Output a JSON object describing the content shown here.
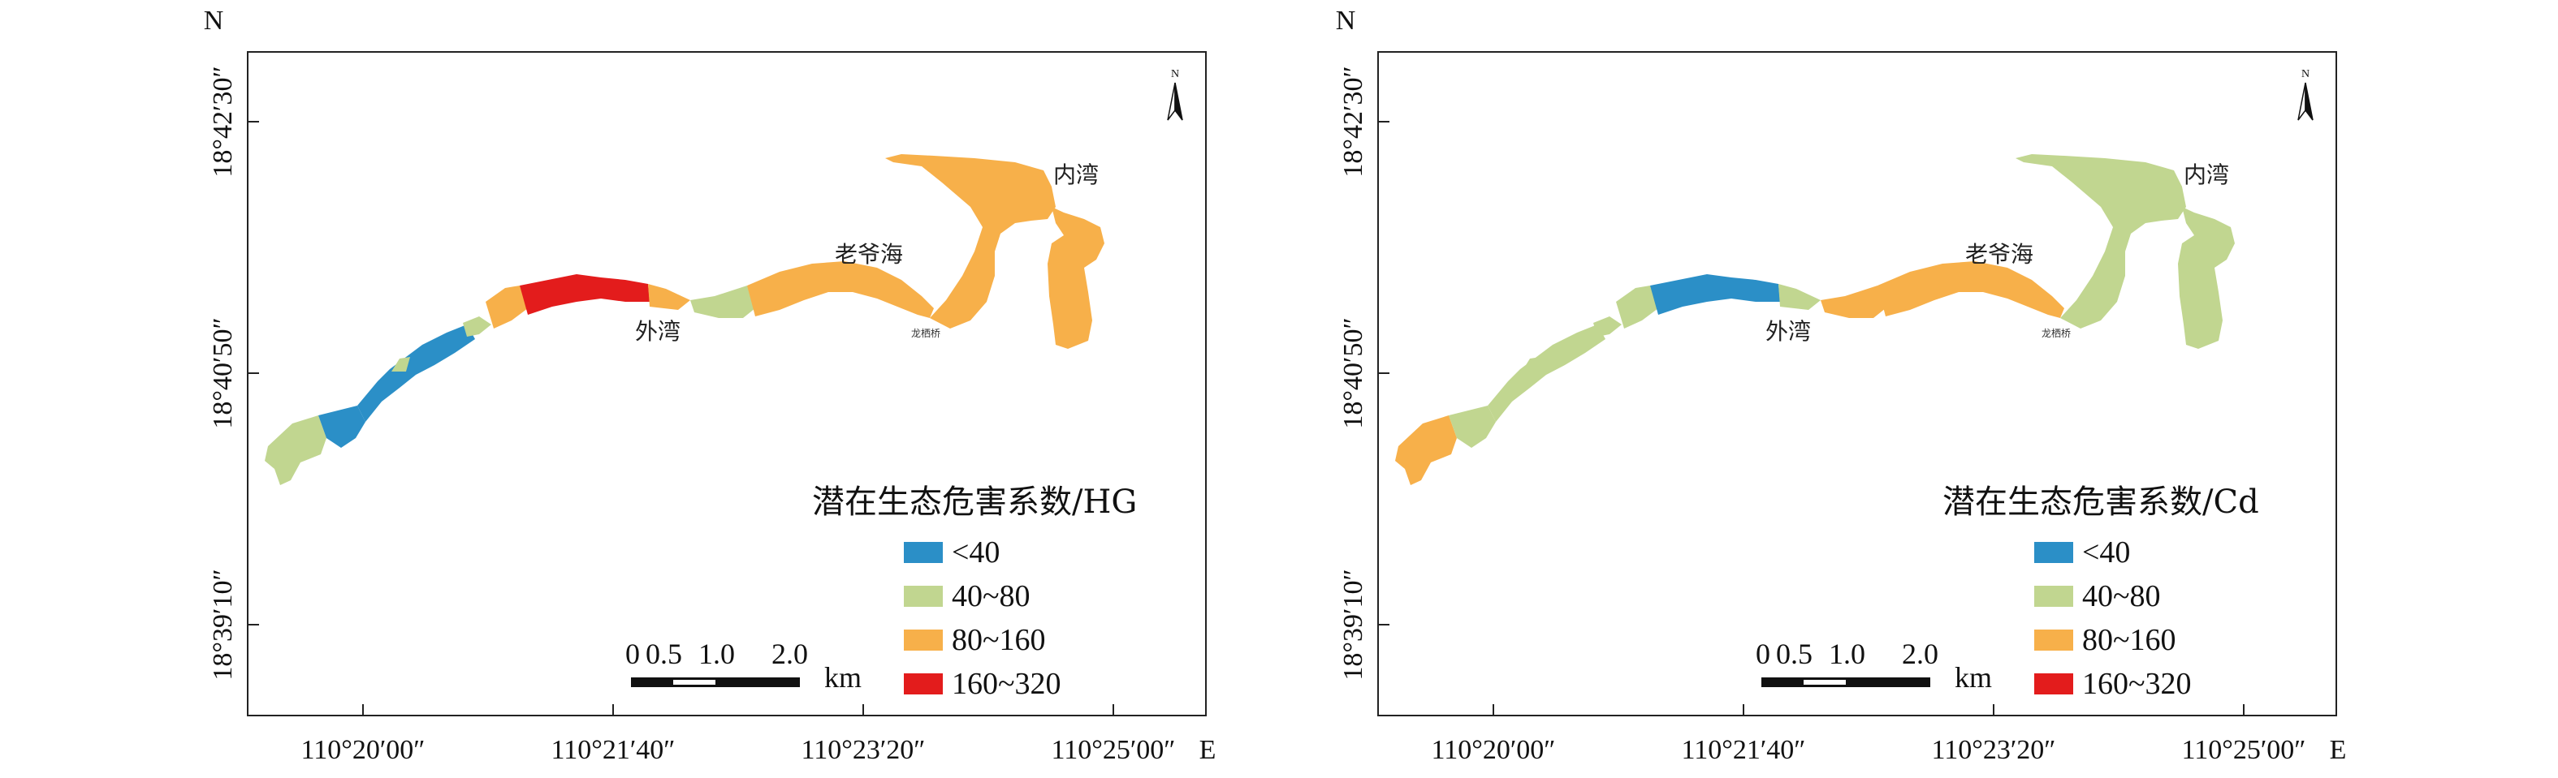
{
  "north_label": "N",
  "east_suffix": "E",
  "x_ticks": [
    "110°20′00″",
    "110°21′40″",
    "110°23′20″",
    "110°25′00″"
  ],
  "y_ticks": [
    "18°42′30″",
    "18°40′50″",
    "18°39′10″"
  ],
  "place_names": {
    "inner_bay": "内湾",
    "laoye_sea": "老爷海",
    "outer_bay": "外湾",
    "longqi_bridge": "龙栖桥"
  },
  "compass_label": "N",
  "scale_bar": {
    "labels": [
      "0",
      "0.5",
      "1.0",
      "2.0"
    ],
    "unit": "km"
  },
  "colors": {
    "lt40": "#2b8fc7",
    "40_80": "#c1d690",
    "80_160": "#f7b04a",
    "160_320": "#e31c1c"
  },
  "legend_items": [
    {
      "label": "<40",
      "color": "#2b8fc7"
    },
    {
      "label": "40~80",
      "color": "#c1d690"
    },
    {
      "label": "80~160",
      "color": "#f7b04a"
    },
    {
      "label": "160~320",
      "color": "#e31c1c"
    }
  ],
  "panels": [
    {
      "legend_title": "潜在生态危害系数/HG",
      "segment_classes": [
        "40_80",
        "lt40",
        "lt40",
        "40_80",
        "40_80",
        "80_160",
        "160_320",
        "80_160",
        "40_80",
        "80_160",
        "80_160",
        "80_160"
      ]
    },
    {
      "legend_title": "潜在生态危害系数/Cd",
      "segment_classes": [
        "80_160",
        "40_80",
        "40_80",
        "40_80",
        "40_80",
        "40_80",
        "lt40",
        "40_80",
        "80_160",
        "80_160",
        "40_80",
        "40_80"
      ]
    }
  ]
}
